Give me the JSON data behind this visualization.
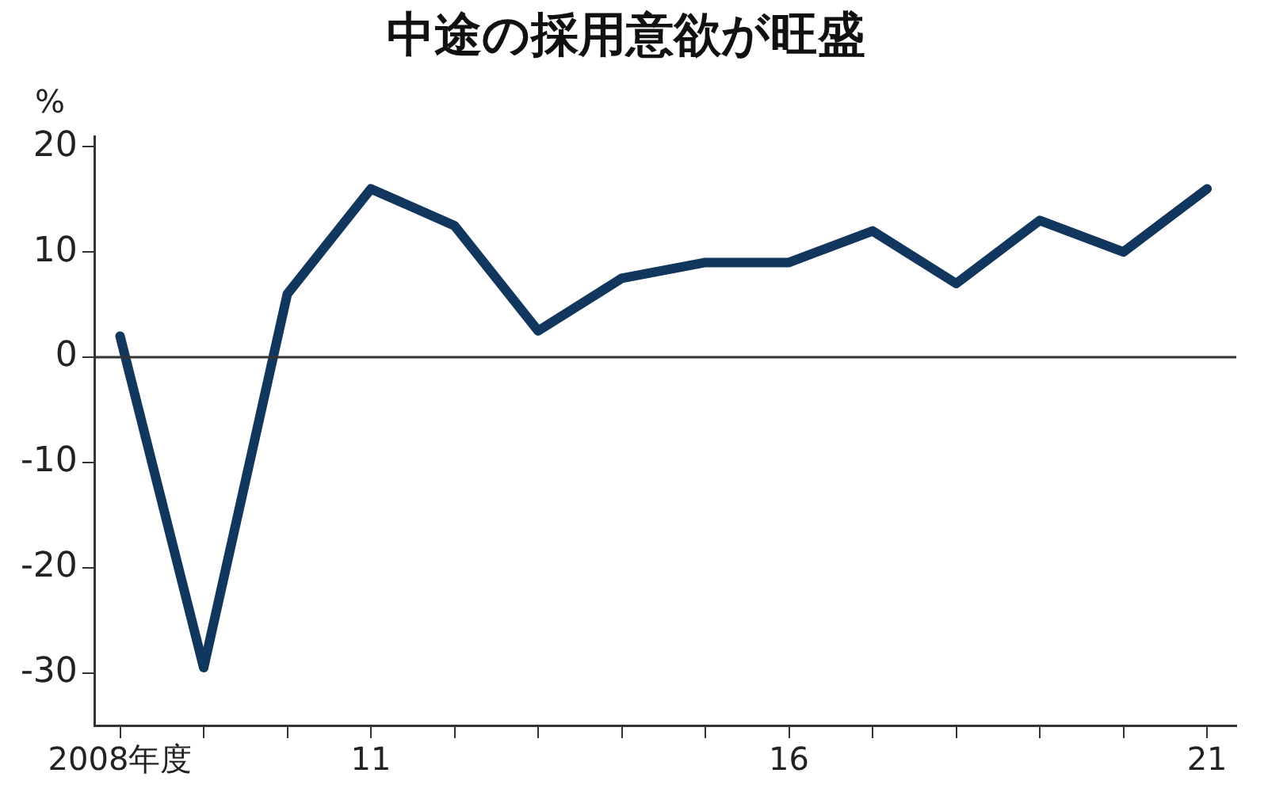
{
  "chart_data": {
    "type": "line",
    "title": "中途の採用意欲が旺盛",
    "ylabel": "%",
    "x": [
      2008,
      2009,
      2010,
      2011,
      2012,
      2013,
      2014,
      2015,
      2016,
      2017,
      2018,
      2019,
      2020,
      2021
    ],
    "series": [
      {
        "color": "#12375f",
        "values": [
          2,
          -29.5,
          6,
          16,
          12.5,
          2.5,
          7.5,
          9,
          9,
          12,
          7,
          13,
          10,
          16
        ]
      }
    ],
    "xlim": [
      2007.7,
      2021.35
    ],
    "xticks": [
      {
        "value": 2008,
        "label": "2008年度"
      },
      {
        "value": 2009,
        "label": null
      },
      {
        "value": 2010,
        "label": null
      },
      {
        "value": 2011,
        "label": "11"
      },
      {
        "value": 2012,
        "label": null
      },
      {
        "value": 2013,
        "label": null
      },
      {
        "value": 2014,
        "label": null
      },
      {
        "value": 2015,
        "label": null
      },
      {
        "value": 2016,
        "label": "16"
      },
      {
        "value": 2017,
        "label": null
      },
      {
        "value": 2018,
        "label": null
      },
      {
        "value": 2019,
        "label": null
      },
      {
        "value": 2020,
        "label": null
      },
      {
        "value": 2021,
        "label": "21"
      }
    ],
    "ylim": [
      -35,
      21
    ],
    "yticks": [
      -30,
      -20,
      -10,
      0,
      10,
      20
    ],
    "ref_lines": [
      {
        "axis": "y",
        "value": 0,
        "color": "#333333",
        "line_style": "solid"
      }
    ],
    "grid": false,
    "legend": false,
    "marker": "none",
    "line_style": "solid"
  }
}
